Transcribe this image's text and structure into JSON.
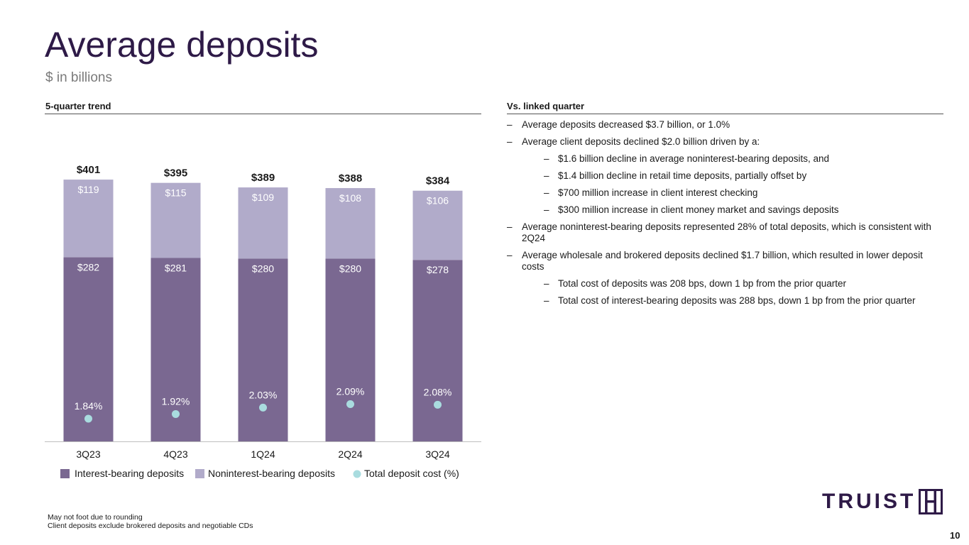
{
  "header": {
    "title": "Average deposits",
    "subtitle": "$ in billions"
  },
  "left_section": {
    "heading": "5-quarter trend"
  },
  "right_section": {
    "heading": "Vs. linked quarter",
    "bullets": [
      {
        "level": 1,
        "text": "Average deposits decreased $3.7 billion, or 1.0%"
      },
      {
        "level": 1,
        "text": "Average client deposits declined $2.0 billion driven by a:"
      },
      {
        "level": 2,
        "text": "$1.6 billion decline in average noninterest-bearing deposits, and"
      },
      {
        "level": 2,
        "text": "$1.4 billion decline in retail time deposits, partially offset by"
      },
      {
        "level": 2,
        "text": "$700 million increase in client interest checking"
      },
      {
        "level": 2,
        "text": "$300 million increase in client money market and savings deposits"
      },
      {
        "level": 1,
        "text": "Average noninterest-bearing deposits represented 28% of total deposits, which is consistent with 2Q24"
      },
      {
        "level": 1,
        "text": "Average wholesale and brokered deposits declined $1.7 billion, which resulted in lower deposit costs"
      },
      {
        "level": 2,
        "text": "Total cost of deposits was 208 bps, down 1 bp from the prior quarter"
      },
      {
        "level": 2,
        "text": "Total cost of interest-bearing deposits was 288 bps, down 1 bp from the prior quarter"
      }
    ]
  },
  "chart_data": {
    "type": "bar",
    "stacked": true,
    "categories": [
      "3Q23",
      "4Q23",
      "1Q24",
      "2Q24",
      "3Q24"
    ],
    "series": [
      {
        "name": "Interest-bearing deposits",
        "values": [
          282,
          281,
          280,
          280,
          278
        ],
        "labels": [
          "$282",
          "$281",
          "$280",
          "$280",
          "$278"
        ],
        "color": "#7a6891"
      },
      {
        "name": "Noninterest-bearing deposits",
        "values": [
          119,
          115,
          109,
          108,
          106
        ],
        "labels": [
          "$119",
          "$115",
          "$109",
          "$108",
          "$106"
        ],
        "color": "#b1abca"
      }
    ],
    "totals": {
      "values": [
        401,
        395,
        389,
        388,
        384
      ],
      "labels": [
        "$401",
        "$395",
        "$389",
        "$388",
        "$384"
      ]
    },
    "overlay": {
      "name": "Total deposit cost (%)",
      "type": "scatter",
      "values": [
        1.84,
        1.92,
        2.03,
        2.09,
        2.08
      ],
      "labels": [
        "1.84%",
        "1.92%",
        "2.03%",
        "2.09%",
        "2.08%"
      ],
      "color": "#a9dcdf"
    },
    "legend_position": "bottom"
  },
  "footnotes": [
    "May not foot due to rounding",
    "Client deposits exclude brokered deposits and negotiable CDs"
  ],
  "logo": {
    "text": "TRUIST"
  },
  "page_number": "10"
}
